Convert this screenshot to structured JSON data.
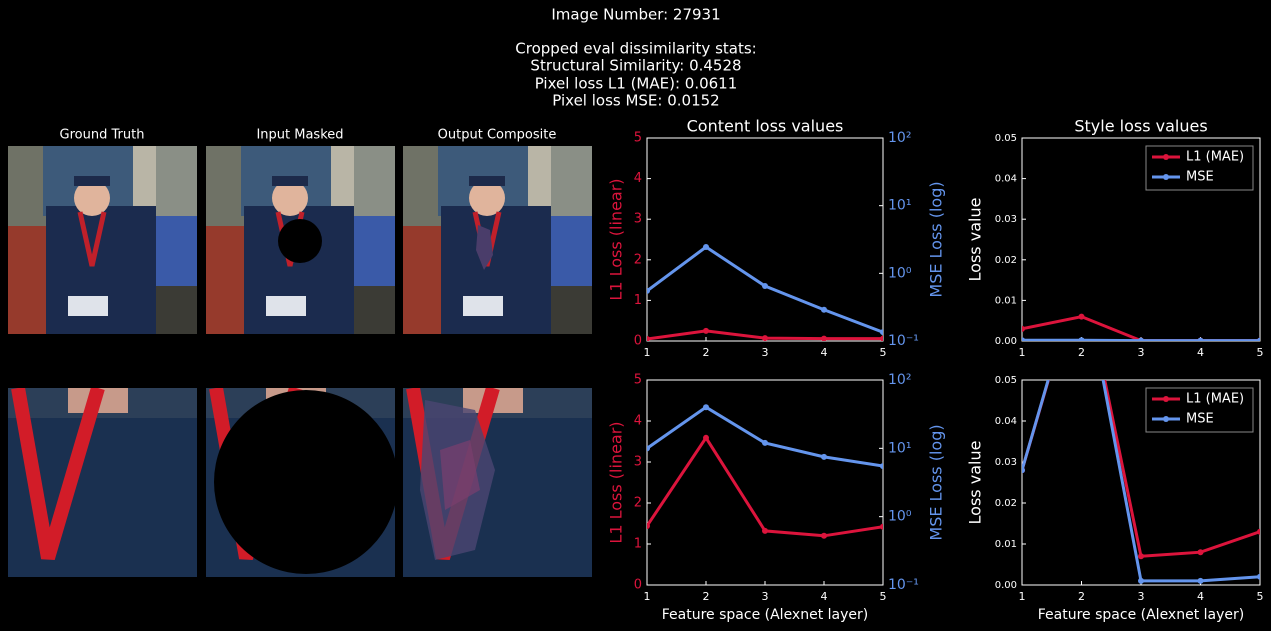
{
  "header": {
    "image_number": "Image Number: 27931",
    "stats_title": "Cropped eval dissimilarity stats:",
    "stats": [
      "Structural Similarity: 0.4528",
      "Pixel loss L1 (MAE): 0.0611",
      "Pixel loss MSE: 0.0152"
    ]
  },
  "panels": {
    "titles": [
      "Ground Truth",
      "Input Masked",
      "Output Composite"
    ]
  },
  "chart_data": [
    {
      "type": "line",
      "title": "Content loss values",
      "ylabel": "L1 Loss (linear)",
      "y2label": "MSE Loss (log)",
      "x": [
        1,
        2,
        3,
        4,
        5
      ],
      "xlim": [
        1,
        5
      ],
      "xticks": [
        1,
        2,
        3,
        4,
        5
      ],
      "ylim": [
        0,
        5
      ],
      "yticks": [
        0,
        1,
        2,
        3,
        4,
        5
      ],
      "y2lim": [
        0.1,
        100
      ],
      "y2scale": "log",
      "y2ticks": [
        {
          "value": 0.1,
          "label": "10⁻¹"
        },
        {
          "value": 1,
          "label": "10⁰"
        },
        {
          "value": 10,
          "label": "10¹"
        },
        {
          "value": 100,
          "label": "10²"
        }
      ],
      "series": [
        {
          "name": "L1 (MAE)",
          "color": "#dc143c",
          "values": [
            0.05,
            0.25,
            0.07,
            0.06,
            0.06
          ]
        },
        {
          "name": "MSE",
          "color": "#6495ed",
          "axis": "y2",
          "values": [
            0.55,
            2.45,
            0.65,
            0.29,
            0.135
          ]
        }
      ]
    },
    {
      "type": "line",
      "title": "Style loss values",
      "ylabel": "Loss value",
      "legend": "upper right",
      "x": [
        1,
        2,
        3,
        4,
        5
      ],
      "xlim": [
        1,
        5
      ],
      "xticks": [
        1,
        2,
        3,
        4,
        5
      ],
      "ylim": [
        0,
        0.05
      ],
      "yticks": [
        {
          "value": 0,
          "label": "0.00"
        },
        {
          "value": 0.01,
          "label": "0.01"
        },
        {
          "value": 0.02,
          "label": "0.02"
        },
        {
          "value": 0.03,
          "label": "0.03"
        },
        {
          "value": 0.04,
          "label": "0.04"
        },
        {
          "value": 0.05,
          "label": "0.05"
        }
      ],
      "series": [
        {
          "name": "L1 (MAE)",
          "color": "#dc143c",
          "values": [
            0.003,
            0.006,
            0.0001,
            0.0001,
            0.0001
          ]
        },
        {
          "name": "MSE",
          "color": "#6495ed",
          "values": [
            0.0002,
            0.0002,
            0.0001,
            0.0001,
            0.0001
          ]
        }
      ]
    },
    {
      "type": "line",
      "ylabel": "L1 Loss (linear)",
      "y2label": "MSE Loss (log)",
      "xlabel": "Feature space (Alexnet layer)",
      "x": [
        1,
        2,
        3,
        4,
        5
      ],
      "xlim": [
        1,
        5
      ],
      "xticks": [
        1,
        2,
        3,
        4,
        5
      ],
      "ylim": [
        0,
        5
      ],
      "yticks": [
        0,
        1,
        2,
        3,
        4,
        5
      ],
      "y2lim": [
        0.1,
        100
      ],
      "y2scale": "log",
      "y2ticks": [
        {
          "value": 0.1,
          "label": "10⁻¹"
        },
        {
          "value": 1,
          "label": "10⁰"
        },
        {
          "value": 10,
          "label": "10¹"
        },
        {
          "value": 100,
          "label": "10²"
        }
      ],
      "series": [
        {
          "name": "L1 (MAE)",
          "color": "#dc143c",
          "values": [
            1.44,
            3.59,
            1.32,
            1.2,
            1.42
          ]
        },
        {
          "name": "MSE",
          "color": "#6495ed",
          "axis": "y2",
          "values": [
            10,
            40,
            12,
            7.5,
            5.5
          ]
        }
      ]
    },
    {
      "type": "line",
      "ylabel": "Loss value",
      "xlabel": "Feature space (Alexnet layer)",
      "legend": "upper right",
      "x": [
        1,
        2,
        3,
        4,
        5
      ],
      "xlim": [
        1,
        5
      ],
      "xticks": [
        1,
        2,
        3,
        4,
        5
      ],
      "ylim": [
        0,
        0.05
      ],
      "yticks": [
        {
          "value": 0,
          "label": "0.00"
        },
        {
          "value": 0.01,
          "label": "0.01"
        },
        {
          "value": 0.02,
          "label": "0.02"
        },
        {
          "value": 0.03,
          "label": "0.03"
        },
        {
          "value": 0.04,
          "label": "0.04"
        },
        {
          "value": 0.05,
          "label": "0.05"
        }
      ],
      "series": [
        {
          "name": "L1 (MAE)",
          "color": "#dc143c",
          "values": [
            0.028,
            0.0775,
            0.007,
            0.008,
            0.013
          ]
        },
        {
          "name": "MSE",
          "color": "#6495ed",
          "values": [
            0.028,
            0.078,
            0.001,
            0.001,
            0.002
          ]
        }
      ]
    }
  ]
}
